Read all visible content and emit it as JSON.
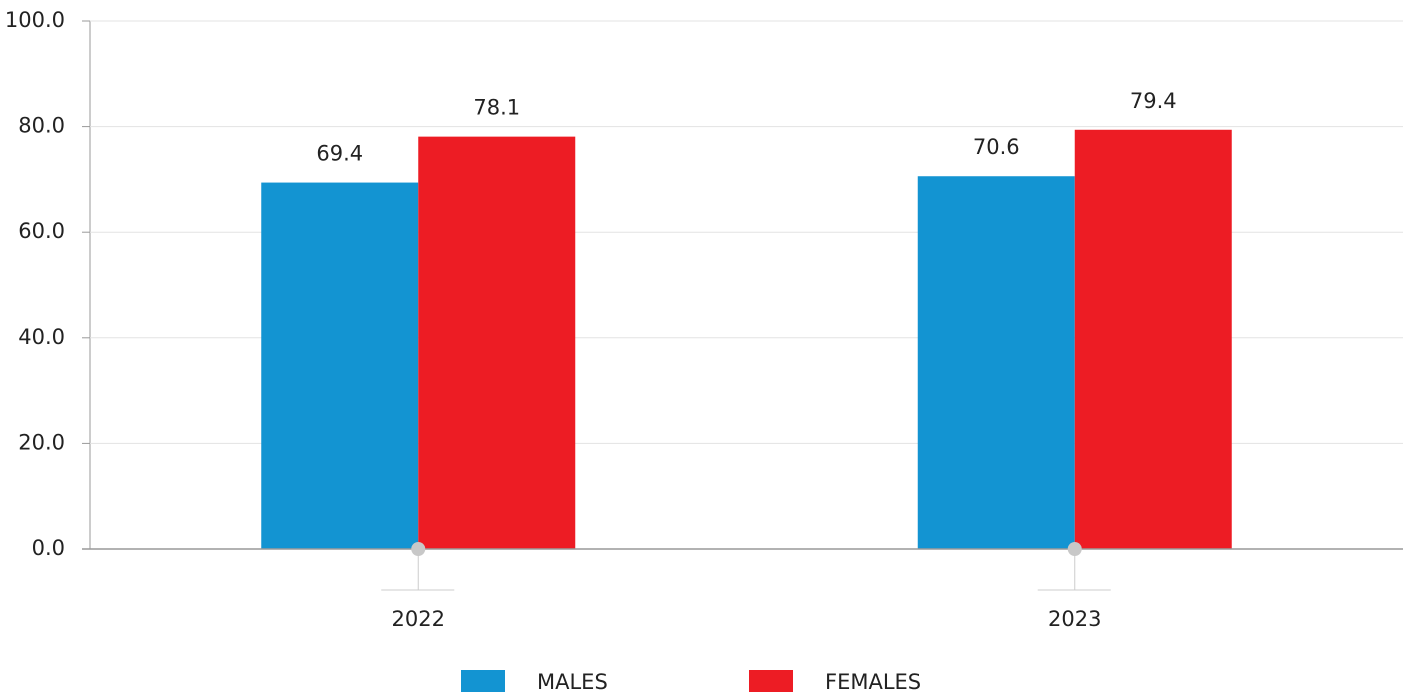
{
  "chart_data": {
    "type": "bar",
    "categories": [
      "2022",
      "2023"
    ],
    "series": [
      {
        "name": "MALES",
        "color": "#1394d2",
        "values": [
          69.4,
          70.6
        ]
      },
      {
        "name": "FEMALES",
        "color": "#ed1c24",
        "values": [
          78.1,
          79.4
        ]
      }
    ],
    "ylim": [
      0,
      100
    ],
    "yticks": [
      {
        "value": 0,
        "label": "0.0"
      },
      {
        "value": 20,
        "label": "20.0"
      },
      {
        "value": 40,
        "label": "40.0"
      },
      {
        "value": 60,
        "label": "60.0"
      },
      {
        "value": 80,
        "label": "80.0"
      },
      {
        "value": 100,
        "label": "100.0"
      }
    ],
    "grid": true,
    "legend": "bottom"
  }
}
